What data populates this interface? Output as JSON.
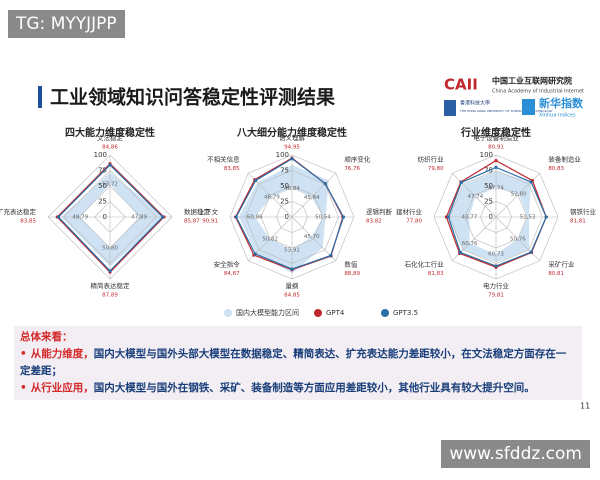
{
  "watermark_top": "TG: MYYJJPP",
  "watermark_bottom": "www.sfddz.com",
  "header": {
    "title": "工业领域知识问答稳定性评测结果",
    "logo_caii": "CAII",
    "logo_caii_cn": "中国工业互联网研究院",
    "logo_caii_en": "China Academy of Industrial Internet",
    "logo_hkust_cn": "香港科技大學",
    "logo_hkust_en": "THE HONG KONG UNIVERSITY OF SCIENCE AND TECHNOLOGY",
    "logo_xinhua_cn": "新华指数",
    "logo_xinhua_en": "Xinhua Indices"
  },
  "chart_data": [
    {
      "type": "radar",
      "title": "四大能力维度稳定性",
      "categories": [
        "文法稳定",
        "数据稳定",
        "精简表达稳定",
        "扩充表达稳定"
      ],
      "rlim": [
        0,
        100
      ],
      "rticks": [
        0,
        25,
        50,
        75,
        100
      ],
      "series": [
        {
          "name": "国内大模型能力区间",
          "color": "#cfe2f3",
          "low": [
            53,
            47,
            50,
            48
          ],
          "high": [
            72,
            89,
            80,
            79
          ]
        },
        {
          "name": "GPT4",
          "color": "#c0282d",
          "values": [
            86,
            87,
            89,
            85
          ]
        },
        {
          "name": "GPT3.5",
          "color": "#2b6ea6",
          "values": [
            84,
            85,
            87,
            83
          ]
        }
      ],
      "point_labels": [
        "84,86",
        "85,87",
        "87,89",
        "83,85"
      ],
      "range_labels": [
        "53,72",
        "47,89",
        "50,80",
        "48,79"
      ]
    },
    {
      "type": "radar",
      "title": "八大细分能力维度稳定性",
      "categories": [
        "语义理解",
        "顺序变化",
        "逻辑判断",
        "数值",
        "量纲",
        "安全指令",
        "上下文",
        "不相关信息"
      ],
      "rlim": [
        0,
        100
      ],
      "rticks": [
        0,
        25,
        50,
        75,
        100
      ],
      "series": [
        {
          "low": [
            46,
            45,
            50,
            45,
            53,
            50,
            60,
            46
          ],
          "high": [
            84,
            84,
            54,
            70,
            91,
            82,
            86,
            79
          ]
        },
        {
          "values": [
            95,
            76,
            82,
            89,
            85,
            87,
            91,
            85
          ]
        },
        {
          "values": [
            94,
            76,
            83,
            88,
            84,
            84,
            90,
            83
          ]
        }
      ],
      "point_labels": [
        "94,95",
        "76,76",
        "83,82",
        "88,89",
        "84,85",
        "84,87",
        "90,91",
        "83,85"
      ],
      "range_labels": [
        "46,84",
        "45,84",
        "50,54",
        "45,70",
        "53,91",
        "50,82",
        "60,86",
        "46,79"
      ]
    },
    {
      "type": "radar",
      "title": "行业维度稳定性",
      "categories": [
        "电子设备制造业",
        "装备制造业",
        "钢铁行业",
        "采矿行业",
        "电力行业",
        "石化化工行业",
        "建材行业",
        "纺织行业"
      ],
      "rlim": [
        0,
        100
      ],
      "rticks": [
        0,
        25,
        50,
        75,
        100
      ],
      "series": [
        {
          "low": [
            47,
            52,
            51,
            50,
            60,
            60,
            43,
            47
          ],
          "high": [
            74,
            80,
            53,
            76,
            73,
            76,
            77,
            74
          ]
        },
        {
          "values": [
            91,
            83,
            81,
            81,
            81,
            83,
            80,
            80
          ]
        },
        {
          "values": [
            80,
            80,
            81,
            80,
            79,
            81,
            77,
            79
          ]
        }
      ],
      "point_labels": [
        "80,91",
        "80,83",
        "81,81",
        "80,81",
        "79,81",
        "81,83",
        "77,80",
        "79,80"
      ],
      "range_labels": [
        "47,74",
        "52,80",
        "51,53",
        "50,76",
        "60,73",
        "60,76",
        "43,77",
        "47,74"
      ]
    }
  ],
  "summary": {
    "heading": "总体来看：",
    "items": [
      {
        "lead": "从能力维度，",
        "text": "国内大模型与国外头部大模型在数据稳定、精简表达、扩充表达能力差距较小，在文法稳定方面存在一定差距；"
      },
      {
        "lead": "从行业应用，",
        "text": "国内大模型与国外在钢铁、采矿、装备制造等方面应用差距较小，其他行业具有较大提升空间。"
      }
    ]
  },
  "page_number": "11"
}
